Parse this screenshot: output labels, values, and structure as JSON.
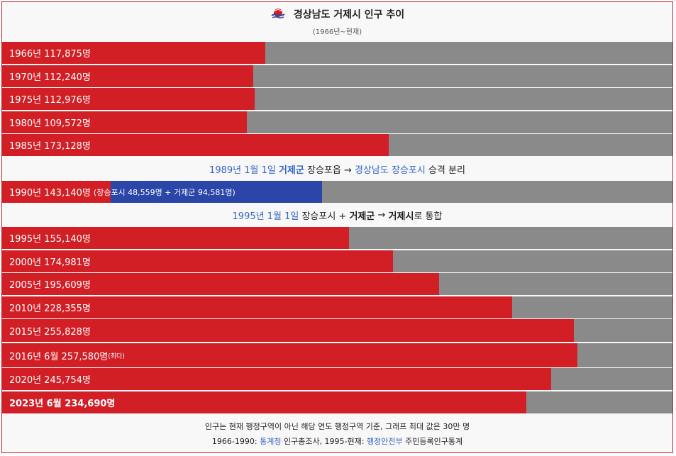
{
  "title": "경상남도 거제시 인구 추이",
  "subtitle": "(1966년~현재)",
  "colors": {
    "bar": "#d21f26",
    "rest": "#8a8a8a",
    "secondary": "#2b45a8",
    "link": "#3366cc"
  },
  "chart_data": {
    "type": "bar",
    "orientation": "horizontal",
    "xlim": [
      0,
      300000
    ],
    "unit": "명",
    "rows": [
      {
        "label": "1966년 117,875명",
        "value": 117875
      },
      {
        "label": "1970년 112,240명",
        "value": 112240
      },
      {
        "label": "1975년 112,976명",
        "value": 112976
      },
      {
        "label": "1980년 109,572명",
        "value": 109572
      },
      {
        "label": "1985년 173,128명",
        "value": 173128
      },
      {
        "label": "1990년 143,140명",
        "value": 143140,
        "parts": [
          48559,
          94581
        ],
        "detail": "(장승포시 48,559명 + 거제군 94,581명)"
      },
      {
        "label": "1995년 155,140명",
        "value": 155140
      },
      {
        "label": "2000년 174,981명",
        "value": 174981
      },
      {
        "label": "2005년 195,609명",
        "value": 195609
      },
      {
        "label": "2010년 228,355명",
        "value": 228355
      },
      {
        "label": "2015년 255,828명",
        "value": 255828
      },
      {
        "label": "2016년 6월 257,580명",
        "value": 257580,
        "sup": "(최다)"
      },
      {
        "label": "2020년 245,754명",
        "value": 245754
      },
      {
        "label": "2023년 6월 234,690명",
        "value": 234690,
        "bold": true
      }
    ]
  },
  "notes": {
    "n1989": {
      "date": "1989년 1월 1일",
      "a": "거제군",
      "b": "장승포읍 →",
      "c": "경상남도 장승포시",
      "d": "승격 분리"
    },
    "n1995": {
      "date": "1995년 1월 1일",
      "a": "장승포시 +",
      "b": "거제군",
      "c": "→",
      "d": "거제시",
      "e": "로 통합"
    }
  },
  "footer": {
    "line1": "인구는 현재 행정구역이 아닌 해당 연도 행정구역 기준, 그래프 최대 값은 30만 명",
    "line2_a": "1966-1990:",
    "line2_b": "통계청",
    "line2_c": "인구총조사, 1995-현재:",
    "line2_d": "행정안전부",
    "line2_e": "주민등록인구통계"
  }
}
